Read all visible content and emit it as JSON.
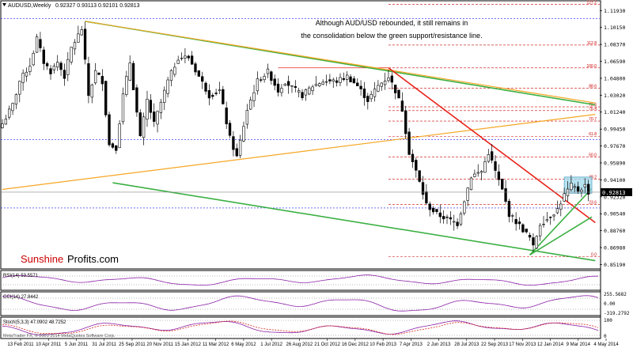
{
  "header": {
    "symbol": "AUDUSD,Weekly",
    "ohlc": "0.92327 0.93113 0.92101 0.92813"
  },
  "footer": {
    "copyright": "MetaTrader FX, © 2001-2014 MetaQuotes Software Corp."
  },
  "colors": {
    "candle_outline": "#000000",
    "green_channel": "#3cb043",
    "red_line": "#e8231a",
    "orange_line": "#f5a623",
    "fib": "#cc0000",
    "blue_dotted": "#1a1aff",
    "consolidation_box": "#9fd9ec",
    "indicator_line": "#8a1fa6"
  },
  "chart_data": {
    "type": "candlestick",
    "title": "AUDUSD,Weekly",
    "annotation": [
      "Although AUD/USD rebounded, it still remains in",
      "the consolidation below the green support/resistance line."
    ],
    "ylim": [
      0.8473,
      1.1296
    ],
    "y_ticks": [
      "1.11930",
      "1.10150",
      "1.08370",
      "1.06590",
      "1.04800",
      "1.03020",
      "1.01240",
      "0.99450",
      "0.97670",
      "0.95890",
      "0.94100",
      "0.92320",
      "0.90540",
      "0.88760",
      "0.86980",
      "0.85190"
    ],
    "x_ticks": [
      "13 Feb 2011",
      "10 Apr 2011",
      "5 Jun 2011",
      "31 Jul 2011",
      "25 Sep 2011",
      "20 Nov 2011",
      "15 Jan 2012",
      "11 Mar 2012",
      "6 May 2012",
      "1 Jul 2012",
      "26 Aug 2012",
      "21 Oct 2012",
      "16 Dec 2012",
      "10 Feb 2013",
      "7 Apr 2013",
      "2 Jun 2013",
      "28 Jul 2013",
      "22 Sep 2013",
      "17 Nov 2013",
      "12 Jan 2014",
      "9 Mar 2014",
      "4 May 2014"
    ],
    "current_price": "0.92813",
    "anchors": [
      [
        "2011-02-13",
        1.0
      ],
      [
        "2011-03-06",
        1.02
      ],
      [
        "2011-03-20",
        1.045
      ],
      [
        "2011-04-10",
        1.062
      ],
      [
        "2011-04-24",
        1.09
      ],
      [
        "2011-05-08",
        1.065
      ],
      [
        "2011-05-22",
        1.055
      ],
      [
        "2011-06-05",
        1.065
      ],
      [
        "2011-06-19",
        1.05
      ],
      [
        "2011-07-03",
        1.08
      ],
      [
        "2011-07-24",
        1.1
      ],
      [
        "2011-08-07",
        1.03
      ],
      [
        "2011-08-21",
        1.055
      ],
      [
        "2011-09-04",
        1.045
      ],
      [
        "2011-09-18",
        0.978
      ],
      [
        "2011-10-02",
        0.975
      ],
      [
        "2011-10-16",
        1.03
      ],
      [
        "2011-10-30",
        1.065
      ],
      [
        "2011-11-20",
        0.985
      ],
      [
        "2011-12-04",
        1.025
      ],
      [
        "2011-12-18",
        1.0
      ],
      [
        "2012-01-15",
        1.045
      ],
      [
        "2012-02-05",
        1.07
      ],
      [
        "2012-02-26",
        1.07
      ],
      [
        "2012-03-18",
        1.05
      ],
      [
        "2012-04-08",
        1.03
      ],
      [
        "2012-04-29",
        1.035
      ],
      [
        "2012-05-20",
        0.985
      ],
      [
        "2012-06-03",
        0.965
      ],
      [
        "2012-06-24",
        1.015
      ],
      [
        "2012-07-15",
        1.045
      ],
      [
        "2012-08-05",
        1.055
      ],
      [
        "2012-08-26",
        1.035
      ],
      [
        "2012-09-09",
        1.045
      ],
      [
        "2012-09-23",
        1.038
      ],
      [
        "2012-10-14",
        1.03
      ],
      [
        "2012-11-04",
        1.04
      ],
      [
        "2012-11-25",
        1.045
      ],
      [
        "2012-12-23",
        1.045
      ],
      [
        "2013-01-13",
        1.05
      ],
      [
        "2013-02-03",
        1.04
      ],
      [
        "2013-02-24",
        1.025
      ],
      [
        "2013-03-17",
        1.04
      ],
      [
        "2013-04-07",
        1.05
      ],
      [
        "2013-04-21",
        1.035
      ],
      [
        "2013-05-05",
        1.015
      ],
      [
        "2013-05-19",
        0.97
      ],
      [
        "2013-06-02",
        0.95
      ],
      [
        "2013-06-23",
        0.915
      ],
      [
        "2013-07-14",
        0.905
      ],
      [
        "2013-08-04",
        0.9
      ],
      [
        "2013-08-25",
        0.895
      ],
      [
        "2013-09-08",
        0.92
      ],
      [
        "2013-09-22",
        0.945
      ],
      [
        "2013-10-13",
        0.95
      ],
      [
        "2013-10-27",
        0.97
      ],
      [
        "2013-11-10",
        0.95
      ],
      [
        "2013-11-24",
        0.93
      ],
      [
        "2013-12-08",
        0.905
      ],
      [
        "2013-12-29",
        0.893
      ],
      [
        "2014-01-19",
        0.88
      ],
      [
        "2014-01-26",
        0.87
      ],
      [
        "2014-02-09",
        0.895
      ],
      [
        "2014-02-23",
        0.9
      ],
      [
        "2014-03-16",
        0.91
      ],
      [
        "2014-03-30",
        0.925
      ],
      [
        "2014-04-13",
        0.935
      ],
      [
        "2014-04-27",
        0.93
      ],
      [
        "2014-05-11",
        0.935
      ],
      [
        "2014-05-18",
        0.9281
      ]
    ],
    "fib_levels": [
      {
        "label": "127.2",
        "price": 1.126
      },
      {
        "label": "112.8",
        "price": 1.083
      },
      {
        "label": "100.0",
        "price": 1.059
      },
      {
        "label": "88.6",
        "price": 1.0375
      },
      {
        "label": "78.6",
        "price": 1.018
      },
      {
        "label": "76.4",
        "price": 1.014
      },
      {
        "label": "70.7",
        "price": 1.003
      },
      {
        "label": "61.8",
        "price": 0.987
      },
      {
        "label": "50.0",
        "price": 0.965
      },
      {
        "label": "38.2",
        "price": 0.942
      },
      {
        "label": "23.6",
        "price": 0.915
      },
      {
        "label": "0.0",
        "price": 0.86
      }
    ],
    "trend_lines": [
      {
        "name": "green-channel-upper",
        "from": [
          "2011-07-31",
          1.108
        ],
        "to": [
          "2014-06-01",
          1.02
        ],
        "color": "green"
      },
      {
        "name": "green-channel-lower",
        "from": [
          "2011-09-25",
          0.938
        ],
        "to": [
          "2014-06-01",
          0.856
        ],
        "color": "green"
      },
      {
        "name": "orange-upper",
        "from": [
          "2011-07-31",
          1.108
        ],
        "to": [
          "2014-06-01",
          1.022
        ],
        "color": "orange"
      },
      {
        "name": "orange-lower",
        "from": [
          "2011-02-13",
          0.931
        ],
        "to": [
          "2014-06-01",
          1.01
        ],
        "color": "orange"
      },
      {
        "name": "red-downtrend",
        "from": [
          "2013-04-07",
          1.059
        ],
        "to": [
          "2014-06-01",
          0.896
        ],
        "color": "red"
      },
      {
        "name": "green-support-1",
        "from": [
          "2014-01-19",
          0.862
        ],
        "to": [
          "2014-05-25",
          0.902
        ],
        "color": "green"
      },
      {
        "name": "green-support-2",
        "from": [
          "2014-01-19",
          0.862
        ],
        "to": [
          "2014-05-25",
          0.932
        ],
        "color": "green"
      }
    ],
    "blue_levels": [
      1.111,
      0.9835,
      0.9115
    ],
    "consolidation": {
      "from": "2014-03-30",
      "to": "2014-05-25",
      "high": 0.944,
      "low": 0.927
    }
  },
  "indicators": {
    "rsi": {
      "label": "RSI(14) 53.5571",
      "ticks": [
        "",
        "",
        ""
      ]
    },
    "cci": {
      "label": "CCI(14) 27.8442",
      "ticks": [
        "255.5682",
        "0.00",
        "-319.2792"
      ]
    },
    "stoch": {
      "label": "Stoch(5,3,3) 47.0902 48.7252",
      "ticks": [
        "100",
        "0"
      ]
    }
  }
}
